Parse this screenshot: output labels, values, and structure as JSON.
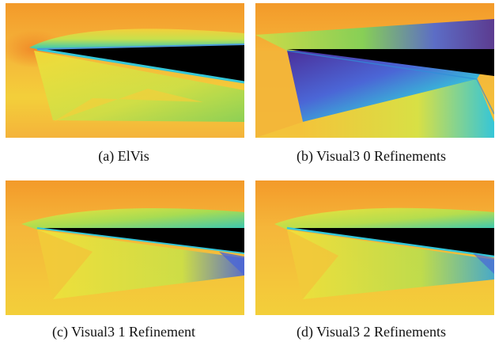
{
  "figure": {
    "panels": [
      {
        "caption": "(a)  ElVis"
      },
      {
        "caption": "(b)  Visual3 0 Refinements"
      },
      {
        "caption": "(c)  Visual3 1 Refinement"
      },
      {
        "caption": "(d)  Visual3 2 Refinements"
      }
    ]
  },
  "colors": {
    "orange": "#f39a2a",
    "yellow": "#f1e23a",
    "green": "#7bd35a",
    "cyan": "#35c6d8",
    "blue": "#4b66d6",
    "purple": "#4b2f9a",
    "body": "#000000"
  }
}
